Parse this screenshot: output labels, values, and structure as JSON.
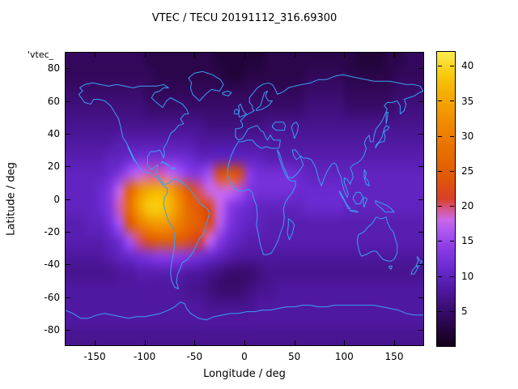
{
  "title": "VTEC / TECU 20191112_316.69300",
  "key_label": "'vtec_",
  "axes": {
    "xlabel": "Longitude / deg",
    "ylabel": "Latitude / deg",
    "xticks": [
      -150,
      -100,
      -50,
      0,
      50,
      100,
      150
    ],
    "yticks": [
      -80,
      -60,
      -40,
      -20,
      0,
      20,
      40,
      60,
      80
    ],
    "xrange": [
      -180,
      180
    ],
    "yrange": [
      -90,
      90
    ]
  },
  "colorbar": {
    "range": [
      0,
      42
    ],
    "ticks": [
      5,
      10,
      15,
      20,
      25,
      30,
      35,
      40
    ]
  },
  "colors": {
    "coastline": "#3b9ff5",
    "frame": "#000000",
    "background": "#ffffff",
    "text": "#000000"
  },
  "palette": [
    [
      0,
      "#120018"
    ],
    [
      4,
      "#33085c"
    ],
    [
      8,
      "#4f18a0"
    ],
    [
      11,
      "#6a2ad0"
    ],
    [
      14,
      "#8c3ce4"
    ],
    [
      16,
      "#a854f0"
    ],
    [
      18,
      "#c868e8"
    ],
    [
      19.5,
      "#d85890"
    ],
    [
      21,
      "#d84028"
    ],
    [
      24,
      "#e05808"
    ],
    [
      28,
      "#e87000"
    ],
    [
      32,
      "#f08c00"
    ],
    [
      36,
      "#f4ae00"
    ],
    [
      39,
      "#f8cc10"
    ],
    [
      42,
      "#fcec50"
    ]
  ],
  "chart_data": {
    "type": "heatmap",
    "title": "VTEC / TECU 20191112_316.69300",
    "xlabel": "Longitude / deg",
    "ylabel": "Latitude / deg",
    "xlim": [
      -180,
      180
    ],
    "ylim": [
      -90,
      90
    ],
    "zlim": [
      0,
      42
    ],
    "z_units": "TECU",
    "lon_start": -175,
    "lon_step": 10,
    "lat_start": 85,
    "lat_step": -10,
    "grid": [
      [
        4,
        4,
        4,
        4,
        4,
        4,
        4,
        4,
        3,
        3,
        3,
        3,
        3,
        3,
        3,
        2,
        2,
        2,
        2,
        2,
        3,
        3,
        3,
        3,
        3,
        3,
        3,
        3,
        3,
        2,
        2,
        2,
        3,
        3,
        4,
        4
      ],
      [
        4,
        4,
        4,
        4,
        4,
        4,
        4,
        4,
        4,
        3,
        3,
        3,
        3,
        3,
        3,
        3,
        2,
        2,
        3,
        3,
        3,
        3,
        3,
        3,
        4,
        4,
        4,
        4,
        3,
        3,
        3,
        3,
        3,
        4,
        4,
        4
      ],
      [
        5,
        5,
        5,
        5,
        5,
        5,
        5,
        5,
        4,
        4,
        4,
        4,
        4,
        4,
        4,
        4,
        4,
        4,
        4,
        4,
        4,
        4,
        4,
        4,
        5,
        5,
        5,
        5,
        4,
        4,
        4,
        4,
        4,
        5,
        5,
        5
      ],
      [
        6,
        6,
        6,
        6,
        6,
        6,
        6,
        6,
        5,
        5,
        5,
        5,
        5,
        5,
        5,
        5,
        5,
        5,
        5,
        5,
        5,
        5,
        5,
        5,
        6,
        6,
        6,
        6,
        5,
        5,
        5,
        5,
        5,
        6,
        6,
        6
      ],
      [
        7,
        7,
        7,
        7,
        7,
        7,
        7,
        7,
        7,
        7,
        7,
        7,
        7,
        7,
        6,
        6,
        6,
        6,
        6,
        6,
        7,
        7,
        7,
        7,
        7,
        7,
        7,
        7,
        7,
        7,
        7,
        7,
        7,
        7,
        7,
        7
      ],
      [
        8,
        8,
        8,
        8,
        8,
        9,
        9,
        9,
        9,
        9,
        9,
        9,
        9,
        8,
        8,
        8,
        8,
        8,
        8,
        8,
        8,
        8,
        8,
        8,
        8,
        8,
        8,
        8,
        8,
        8,
        8,
        8,
        8,
        8,
        8,
        8
      ],
      [
        9,
        9,
        9,
        9,
        10,
        10,
        11,
        12,
        12,
        12,
        12,
        12,
        11,
        10,
        10,
        10,
        10,
        10,
        10,
        10,
        9,
        9,
        9,
        9,
        9,
        9,
        9,
        9,
        9,
        9,
        9,
        9,
        9,
        9,
        9,
        9
      ],
      [
        10,
        10,
        10,
        10,
        11,
        13,
        16,
        18,
        19,
        19,
        18,
        16,
        14,
        14,
        16,
        23,
        25,
        23,
        14,
        12,
        12,
        12,
        12,
        11,
        10,
        10,
        10,
        10,
        10,
        10,
        10,
        10,
        10,
        10,
        10,
        10
      ],
      [
        10,
        10,
        10,
        11,
        13,
        18,
        26,
        33,
        36,
        37,
        35,
        30,
        24,
        20,
        18,
        18,
        18,
        16,
        13,
        12,
        12,
        12,
        12,
        11,
        11,
        11,
        11,
        11,
        10,
        10,
        10,
        10,
        10,
        10,
        10,
        10
      ],
      [
        10,
        10,
        10,
        11,
        13,
        19,
        28,
        35,
        39,
        39,
        37,
        32,
        27,
        24,
        22,
        18,
        14,
        12,
        11,
        10,
        10,
        10,
        10,
        10,
        11,
        11,
        11,
        11,
        10,
        10,
        10,
        10,
        10,
        10,
        10,
        10
      ],
      [
        9,
        9,
        10,
        10,
        12,
        16,
        24,
        30,
        33,
        34,
        33,
        30,
        27,
        25,
        22,
        17,
        13,
        11,
        10,
        10,
        9,
        9,
        9,
        9,
        9,
        9,
        9,
        9,
        9,
        9,
        9,
        9,
        9,
        9,
        9,
        9
      ],
      [
        9,
        9,
        9,
        9,
        10,
        12,
        16,
        20,
        24,
        26,
        26,
        25,
        23,
        21,
        18,
        14,
        11,
        10,
        9,
        9,
        9,
        9,
        9,
        9,
        9,
        9,
        9,
        9,
        9,
        9,
        9,
        9,
        9,
        9,
        9,
        9
      ],
      [
        8,
        8,
        8,
        8,
        9,
        10,
        11,
        12,
        13,
        14,
        14,
        14,
        13,
        12,
        11,
        10,
        9,
        8,
        8,
        8,
        8,
        8,
        8,
        8,
        8,
        8,
        8,
        8,
        8,
        8,
        8,
        8,
        8,
        8,
        8,
        8
      ],
      [
        7,
        7,
        7,
        7,
        7,
        8,
        8,
        9,
        9,
        9,
        9,
        9,
        8,
        8,
        7,
        6,
        5,
        5,
        5,
        6,
        7,
        7,
        7,
        7,
        7,
        7,
        7,
        7,
        7,
        7,
        7,
        7,
        7,
        7,
        7,
        7
      ],
      [
        8,
        8,
        8,
        8,
        8,
        8,
        8,
        8,
        8,
        8,
        8,
        8,
        7,
        7,
        6,
        5,
        5,
        5,
        6,
        7,
        7,
        8,
        8,
        8,
        8,
        8,
        8,
        8,
        8,
        8,
        8,
        8,
        8,
        8,
        8,
        8
      ],
      [
        8,
        8,
        8,
        8,
        8,
        8,
        8,
        8,
        8,
        8,
        8,
        8,
        8,
        8,
        7,
        7,
        7,
        7,
        7,
        8,
        8,
        8,
        8,
        8,
        8,
        8,
        8,
        8,
        8,
        8,
        8,
        8,
        8,
        8,
        8,
        8
      ],
      [
        8,
        8,
        8,
        8,
        8,
        8,
        8,
        8,
        8,
        8,
        8,
        8,
        8,
        8,
        8,
        8,
        8,
        8,
        8,
        8,
        8,
        8,
        8,
        8,
        8,
        8,
        8,
        8,
        8,
        8,
        8,
        8,
        8,
        8,
        8,
        8
      ],
      [
        7,
        7,
        7,
        7,
        7,
        7,
        7,
        7,
        7,
        7,
        7,
        7,
        7,
        7,
        7,
        7,
        7,
        7,
        7,
        7,
        7,
        7,
        7,
        7,
        7,
        7,
        7,
        7,
        7,
        7,
        7,
        7,
        7,
        7,
        7,
        7
      ]
    ]
  }
}
